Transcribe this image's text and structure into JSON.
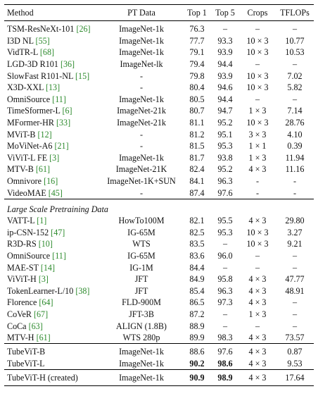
{
  "columns": [
    "Method",
    "PT Data",
    "Top 1",
    "Top 5",
    "Crops",
    "TFLOPs"
  ],
  "group1": [
    {
      "name": "TSM-ResNeXt-101",
      "cite": "[26]",
      "pt": "ImageNet-1k",
      "t1": "76.3",
      "t5": "–",
      "crops": "–",
      "tflops": "–"
    },
    {
      "name": "I3D NL",
      "cite": "[55]",
      "pt": "ImageNet-1k",
      "t1": "77.7",
      "t5": "93.3",
      "crops": "10 × 3",
      "tflops": "10.77"
    },
    {
      "name": "VidTR-L",
      "cite": "[68]",
      "pt": "ImageNet-1k",
      "t1": "79.1",
      "t5": "93.9",
      "crops": "10 × 3",
      "tflops": "10.53"
    },
    {
      "name": "LGD-3D R101",
      "cite": "[36]",
      "pt": "ImageNet-lk",
      "t1": "79.4",
      "t5": "94.4",
      "crops": "–",
      "tflops": "–"
    },
    {
      "name": "SlowFast R101-NL",
      "cite": "[15]",
      "pt": "-",
      "t1": "79.8",
      "t5": "93.9",
      "crops": "10 × 3",
      "tflops": "7.02"
    },
    {
      "name": "X3D-XXL",
      "cite": "[13]",
      "pt": "-",
      "t1": "80.4",
      "t5": "94.6",
      "crops": "10 × 3",
      "tflops": "5.82"
    },
    {
      "name": "OmniSource",
      "cite": "[11]",
      "pt": "ImageNet-1k",
      "t1": "80.5",
      "t5": "94.4",
      "crops": "–",
      "tflops": "–"
    },
    {
      "name": "TimeSformer-L",
      "cite": "[6]",
      "pt": "ImageNet-21k",
      "t1": "80.7",
      "t5": "94.7",
      "crops": "1 × 3",
      "tflops": "7.14"
    },
    {
      "name": "MFormer-HR",
      "cite": "[33]",
      "pt": "ImageNet-21k",
      "t1": "81.1",
      "t5": "95.2",
      "crops": "10 × 3",
      "tflops": "28.76"
    },
    {
      "name": "MViT-B",
      "cite": "[12]",
      "pt": "-",
      "t1": "81.2",
      "t5": "95.1",
      "crops": "3 × 3",
      "tflops": "4.10"
    },
    {
      "name": "MoViNet-A6",
      "cite": "[21]",
      "pt": "-",
      "t1": "81.5",
      "t5": "95.3",
      "crops": "1 × 1",
      "tflops": "0.39"
    },
    {
      "name": "ViViT-L FE",
      "cite": "[3]",
      "pt": "ImageNet-1k",
      "t1": "81.7",
      "t5": "93.8",
      "crops": "1 × 3",
      "tflops": "11.94"
    },
    {
      "name": "MTV-B",
      "cite": "[61]",
      "pt": "ImageNet-21K",
      "t1": "82.4",
      "t5": "95.2",
      "crops": "4 × 3",
      "tflops": "11.16"
    },
    {
      "name": "Omnivore",
      "cite": "[16]",
      "pt": "ImageNet-1K+SUN",
      "t1": "84.1",
      "t5": "96.3",
      "crops": "-",
      "tflops": "-"
    },
    {
      "name": "VideoMAE",
      "cite": "[45]",
      "pt": "-",
      "t1": "87.4",
      "t5": "97.6",
      "crops": "-",
      "tflops": "-"
    }
  ],
  "section_label": "Large Scale Pretraining Data",
  "group2": [
    {
      "name": "VATT-L",
      "cite": "[1]",
      "pt": "HowTo100M",
      "t1": "82.1",
      "t5": "95.5",
      "crops": "4 × 3",
      "tflops": "29.80"
    },
    {
      "name": "ip-CSN-152",
      "cite": "[47]",
      "pt": "IG-65M",
      "t1": "82.5",
      "t5": "95.3",
      "crops": "10 × 3",
      "tflops": "3.27"
    },
    {
      "name": "R3D-RS",
      "cite": "[10]",
      "pt": "WTS",
      "t1": "83.5",
      "t5": "–",
      "crops": "10 × 3",
      "tflops": "9.21"
    },
    {
      "name": "OmniSource",
      "cite": "[11]",
      "pt": "IG-65M",
      "t1": "83.6",
      "t5": "96.0",
      "crops": "–",
      "tflops": "–"
    },
    {
      "name": "MAE-ST",
      "cite": "[14]",
      "pt": "IG-1M",
      "t1": "84.4",
      "t5": "–",
      "crops": "–",
      "tflops": "–"
    },
    {
      "name": "ViViT-H",
      "cite": "[3]",
      "pt": "JFT",
      "t1": "84.9",
      "t5": "95.8",
      "crops": "4 × 3",
      "tflops": "47.77"
    },
    {
      "name": "TokenLearner-L/10",
      "cite": "[38]",
      "pt": "JFT",
      "t1": "85.4",
      "t5": "96.3",
      "crops": "4 × 3",
      "tflops": "48.91"
    },
    {
      "name": "Florence",
      "cite": "[64]",
      "pt": "FLD-900M",
      "t1": "86.5",
      "t5": "97.3",
      "crops": "4 × 3",
      "tflops": "–"
    },
    {
      "name": "CoVeR",
      "cite": "[67]",
      "pt": "JFT-3B",
      "t1": "87.2",
      "t5": "–",
      "crops": "1 × 3",
      "tflops": "–"
    },
    {
      "name": "CoCa",
      "cite": "[63]",
      "pt": "ALIGN (1.8B)",
      "t1": "88.9",
      "t5": "–",
      "crops": "–",
      "tflops": "–"
    },
    {
      "name": "MTV-H",
      "cite": "[61]",
      "pt": "WTS 280p",
      "t1": "89.9",
      "t5": "98.3",
      "crops": "4 × 3",
      "tflops": "73.57"
    }
  ],
  "group3": [
    {
      "name": "TubeViT-B",
      "pt": "ImageNet-1k",
      "t1": "88.6",
      "t5": "97.6",
      "crops": "4 × 3",
      "tflops": "0.87"
    },
    {
      "name": "TubeViT-L",
      "pt": "ImageNet-1k",
      "t1": "90.2",
      "t5": "98.6",
      "crops": "4 × 3",
      "tflops": "9.53"
    }
  ],
  "final": {
    "name": "TubeViT-H (created)",
    "pt": "ImageNet-1k",
    "t1": "90.9",
    "t5": "98.9",
    "crops": "4 × 3",
    "tflops": "17.64"
  },
  "bold_cells": {
    "TubeViT-L": [
      "t1",
      "t5"
    ],
    "TubeViT-H (created)": [
      "t1",
      "t5"
    ]
  }
}
